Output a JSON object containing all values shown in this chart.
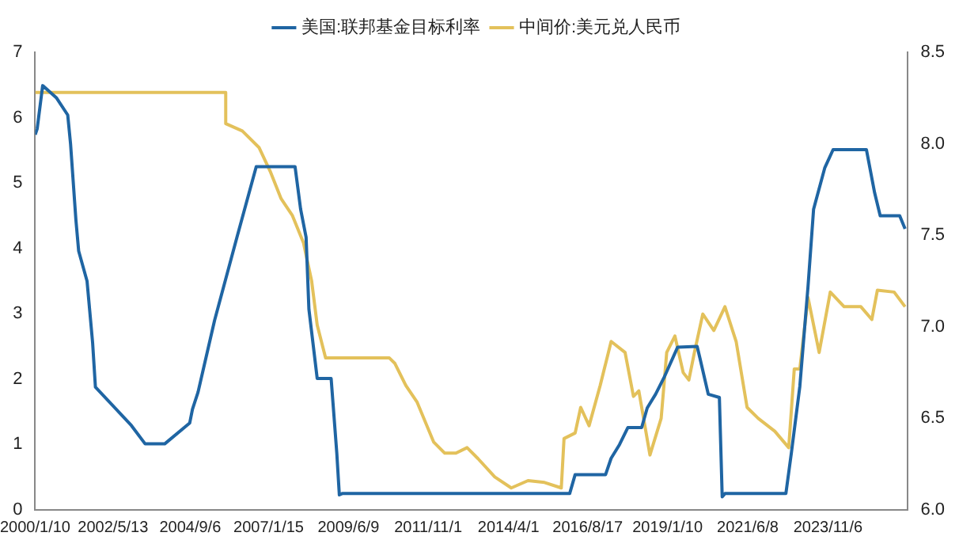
{
  "chart_data": {
    "type": "line",
    "legend": "top",
    "grid": false,
    "marker": "none",
    "line_style": "solid",
    "xlim": [
      "2000-01-10",
      "2026-04"
    ],
    "xticks": [
      {
        "value": "2000-01-10",
        "label": "2000/1/10"
      },
      {
        "value": "2002-05-13",
        "label": "2002/5/13"
      },
      {
        "value": "2004-09-06",
        "label": "2004/9/6"
      },
      {
        "value": "2007-01-15",
        "label": "2007/1/15"
      },
      {
        "value": "2009-06-09",
        "label": "2009/6/9"
      },
      {
        "value": "2011-11-01",
        "label": "2011/11/1"
      },
      {
        "value": "2014-04-01",
        "label": "2014/4/1"
      },
      {
        "value": "2016-08-17",
        "label": "2016/8/17"
      },
      {
        "value": "2019-01-10",
        "label": "2019/1/10"
      },
      {
        "value": "2021-06-08",
        "label": "2021/6/8"
      },
      {
        "value": "2023-11-06",
        "label": "2023/11/6"
      }
    ],
    "ylim": [
      0,
      7
    ],
    "yticks": [
      0,
      1,
      2,
      3,
      4,
      5,
      6,
      7
    ],
    "y2lim": [
      6,
      8.5
    ],
    "y2ticks": [
      {
        "value": 6,
        "label": "6.0"
      },
      {
        "value": 6.5,
        "label": "6.5"
      },
      {
        "value": 7,
        "label": "7.0"
      },
      {
        "value": 7.5,
        "label": "7.5"
      },
      {
        "value": 8,
        "label": "8.0"
      },
      {
        "value": 8.5,
        "label": "8.5"
      }
    ],
    "series": [
      {
        "name": "美国:联邦基金目标利率",
        "color": "#1f65a3",
        "x": [
          "2000-01-10",
          "2000-02",
          "2000-04",
          "2000-09",
          "2001-01",
          "2001-02",
          "2001-04",
          "2001-05",
          "2001-08",
          "2001-10",
          "2001-11",
          "2002-12",
          "2003-05",
          "2003-12",
          "2004-09",
          "2004-10",
          "2004-12",
          "2005-06",
          "2006-02",
          "2006-09",
          "2007-11",
          "2008-01",
          "2008-03",
          "2008-04",
          "2008-07",
          "2008-12",
          "2009-02",
          "2009-03",
          "2009-04",
          "2016-02",
          "2016-04",
          "2017-03",
          "2017-05",
          "2017-08",
          "2017-11",
          "2018-04",
          "2018-06",
          "2018-09",
          "2018-12",
          "2019-05",
          "2019-12",
          "2020-01",
          "2020-04",
          "2020-08",
          "2020-09",
          "2020-10",
          "2022-08",
          "2022-10",
          "2023-01",
          "2023-04",
          "2023-06",
          "2023-10",
          "2024-01",
          "2025-01",
          "2025-04",
          "2025-06",
          "2026-01",
          "2026-03"
        ],
        "values": [
          5.74,
          5.83,
          6.49,
          6.3,
          6.04,
          5.6,
          4.43,
          3.96,
          3.5,
          2.56,
          1.88,
          1.29,
          1.01,
          1.01,
          1.33,
          1.54,
          1.8,
          2.9,
          4.17,
          5.25,
          5.25,
          4.6,
          4.17,
          3.07,
          2.01,
          2.01,
          0.87,
          0.23,
          0.25,
          0.25,
          0.54,
          0.54,
          0.79,
          1.0,
          1.26,
          1.26,
          1.56,
          1.77,
          2.02,
          2.49,
          2.5,
          2.32,
          1.77,
          1.72,
          0.2,
          0.25,
          0.25,
          0.88,
          1.89,
          3.42,
          4.6,
          5.23,
          5.51,
          5.51,
          4.85,
          4.5,
          4.5,
          4.3
        ]
      },
      {
        "name": "中间价:美元兑人民币",
        "color": "#e3c15b",
        "axis": "y2",
        "x": [
          "2000-01-10",
          "2005-10",
          "2005-10",
          "2006-04",
          "2006-10",
          "2007-02",
          "2007-06",
          "2007-10",
          "2008-02",
          "2008-05",
          "2008-07",
          "2008-10",
          "2010-09",
          "2010-11",
          "2011-03",
          "2011-07",
          "2012-01",
          "2012-05",
          "2012-09",
          "2013-01",
          "2013-05",
          "2013-11",
          "2014-05",
          "2014-11",
          "2015-05",
          "2015-11",
          "2015-12",
          "2016-04",
          "2016-06",
          "2016-09",
          "2017-01",
          "2017-05",
          "2017-10",
          "2018-01",
          "2018-03",
          "2018-07",
          "2018-11",
          "2019-01",
          "2019-04",
          "2019-07",
          "2019-09",
          "2019-11",
          "2020-02",
          "2020-06",
          "2020-10",
          "2021-02",
          "2021-06",
          "2021-10",
          "2022-04",
          "2022-09",
          "2022-11",
          "2023-01",
          "2023-04",
          "2023-08",
          "2023-12",
          "2024-05",
          "2024-11",
          "2025-03",
          "2025-05",
          "2025-11",
          "2026-03"
        ],
        "values": [
          8.28,
          8.28,
          8.11,
          8.07,
          7.98,
          7.85,
          7.7,
          7.61,
          7.46,
          7.25,
          7.01,
          6.83,
          6.83,
          6.8,
          6.68,
          6.59,
          6.37,
          6.31,
          6.31,
          6.34,
          6.28,
          6.18,
          6.12,
          6.16,
          6.15,
          6.12,
          6.39,
          6.42,
          6.56,
          6.46,
          6.68,
          6.92,
          6.86,
          6.62,
          6.65,
          6.3,
          6.5,
          6.86,
          6.95,
          6.75,
          6.71,
          6.86,
          7.07,
          6.98,
          7.11,
          6.92,
          6.56,
          6.5,
          6.43,
          6.34,
          6.77,
          6.77,
          7.16,
          6.86,
          7.19,
          7.11,
          7.11,
          7.04,
          7.2,
          7.19,
          7.11
        ]
      }
    ]
  }
}
